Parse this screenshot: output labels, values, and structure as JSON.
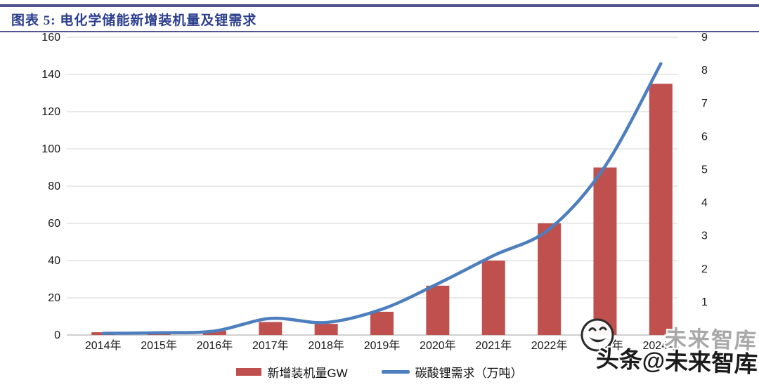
{
  "header": {
    "title": "图表 5: 电化学储能新增装机量及锂需求"
  },
  "chart_data": {
    "type": "combo",
    "categories": [
      "2014年",
      "2015年",
      "2016年",
      "2017年",
      "2018年",
      "2019年",
      "2020年",
      "2021年",
      "2022年",
      "2023年",
      "2024年"
    ],
    "series": [
      {
        "name": "新增装机量GW",
        "type": "bar",
        "axis": "left",
        "color": "#c0504d",
        "values": [
          1.5,
          1,
          2.3,
          7,
          6,
          12.5,
          26.5,
          40,
          60,
          90,
          135
        ]
      },
      {
        "name": "碳酸锂需求（万吨）",
        "type": "line",
        "axis": "right",
        "color": "#4d7ebd",
        "values": [
          0.05,
          0.07,
          0.12,
          0.5,
          0.38,
          0.78,
          1.55,
          2.4,
          3.2,
          5.1,
          8.2
        ]
      }
    ],
    "left_axis": {
      "min": 0,
      "max": 160,
      "step": 20
    },
    "right_axis": {
      "min": 0,
      "max": 9,
      "step": 1
    },
    "grid": true,
    "legend_position": "bottom",
    "colors": {
      "gridline": "#dcdcdc",
      "baseline": "#c0c0c0",
      "tick_text": "#1a1a1a"
    }
  },
  "watermark": {
    "gray_text": "未来智库",
    "main_text": "头条@未来智库",
    "icon": "smiley-face"
  }
}
